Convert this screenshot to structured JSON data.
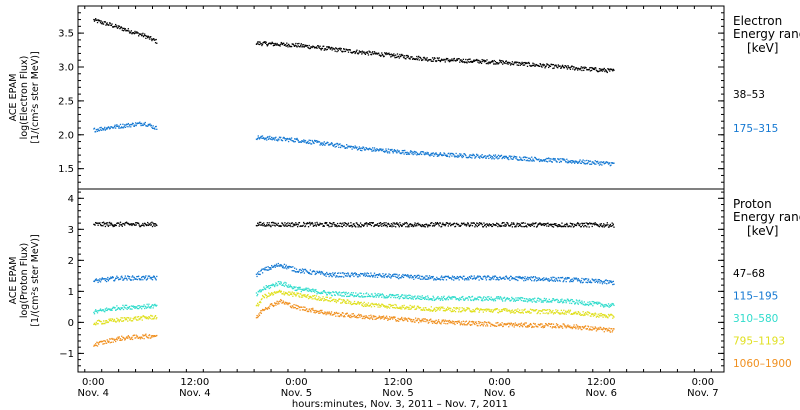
{
  "chart_data": [
    {
      "panel": "electron",
      "type": "scatter",
      "ylabel_lines": [
        "ACE EPAM",
        "log(Electron Flux)",
        "[1/(cm²s ster MeV)]"
      ],
      "ylim": [
        1.2,
        3.9
      ],
      "yticks": [
        1.5,
        2.0,
        2.5,
        3.0,
        3.5
      ],
      "ytick_labels": [
        "1.5",
        "2.0",
        "2.5",
        "3.0",
        "3.5"
      ],
      "legend_title": [
        "Electron",
        "Energy ranges",
        "[keV]"
      ],
      "series": [
        {
          "name": "38–53",
          "color": "#000000",
          "segments": [
            {
              "x": [
                0.0,
                2.0,
                4.0,
                6.0,
                7.5
              ],
              "y": [
                3.7,
                3.63,
                3.55,
                3.47,
                3.38
              ]
            },
            {
              "x": [
                19.2,
                24.0,
                32.0,
                40.0,
                48.0,
                56.0,
                61.5
              ],
              "y": [
                3.36,
                3.33,
                3.22,
                3.12,
                3.08,
                3.0,
                2.95
              ]
            }
          ]
        },
        {
          "name": "175–315",
          "color": "#1478d2",
          "segments": [
            {
              "x": [
                0.0,
                2.0,
                4.0,
                6.0,
                7.5
              ],
              "y": [
                2.08,
                2.12,
                2.15,
                2.18,
                2.1
              ]
            },
            {
              "x": [
                19.2,
                24.0,
                32.0,
                40.0,
                48.0,
                56.0,
                61.5
              ],
              "y": [
                1.97,
                1.93,
                1.8,
                1.72,
                1.68,
                1.62,
                1.58
              ]
            }
          ]
        }
      ]
    },
    {
      "panel": "proton",
      "type": "scatter",
      "ylabel_lines": [
        "ACE EPAM",
        "log(Proton Flux)",
        "[1/(cm²s ster MeV)]"
      ],
      "ylim": [
        -1.6,
        4.3
      ],
      "yticks": [
        -1,
        0,
        1,
        2,
        3,
        4
      ],
      "ytick_labels": [
        "−1",
        "0",
        "1",
        "2",
        "3",
        "4"
      ],
      "legend_title": [
        "Proton",
        "Energy ranges",
        "[keV]"
      ],
      "series": [
        {
          "name": "47–68",
          "color": "#000000",
          "segments": [
            {
              "x": [
                0.0,
                7.5
              ],
              "y": [
                3.18,
                3.18
              ]
            },
            {
              "x": [
                19.2,
                30.0,
                45.0,
                61.5
              ],
              "y": [
                3.18,
                3.17,
                3.17,
                3.16
              ]
            }
          ]
        },
        {
          "name": "115–195",
          "color": "#1478d2",
          "segments": [
            {
              "x": [
                0.0,
                3.0,
                7.5
              ],
              "y": [
                1.35,
                1.45,
                1.45
              ]
            },
            {
              "x": [
                19.2,
                20.0,
                22.0,
                24.0,
                28.0,
                32.0,
                40.0,
                48.0,
                56.0,
                61.5
              ],
              "y": [
                1.55,
                1.7,
                1.88,
                1.7,
                1.55,
                1.55,
                1.45,
                1.45,
                1.4,
                1.3
              ]
            }
          ]
        },
        {
          "name": "310–580",
          "color": "#30dccc",
          "segments": [
            {
              "x": [
                0.0,
                3.0,
                7.5
              ],
              "y": [
                0.35,
                0.5,
                0.55
              ]
            },
            {
              "x": [
                19.2,
                20.0,
                22.0,
                24.0,
                28.0,
                32.0,
                40.0,
                48.0,
                56.0,
                61.5
              ],
              "y": [
                0.9,
                1.1,
                1.3,
                1.1,
                0.95,
                0.9,
                0.8,
                0.78,
                0.7,
                0.55
              ]
            }
          ]
        },
        {
          "name": "795–1193",
          "color": "#e0e020",
          "segments": [
            {
              "x": [
                0.0,
                3.0,
                7.5
              ],
              "y": [
                0.0,
                0.1,
                0.2
              ]
            },
            {
              "x": [
                19.2,
                20.0,
                22.0,
                24.0,
                28.0,
                32.0,
                40.0,
                48.0,
                56.0,
                61.5
              ],
              "y": [
                0.5,
                0.85,
                1.0,
                0.9,
                0.75,
                0.6,
                0.45,
                0.4,
                0.35,
                0.2
              ]
            }
          ]
        },
        {
          "name": "1060–1900",
          "color": "#f09020",
          "segments": [
            {
              "x": [
                0.0,
                3.0,
                7.5
              ],
              "y": [
                -0.7,
                -0.5,
                -0.4
              ]
            },
            {
              "x": [
                19.2,
                20.0,
                22.0,
                24.0,
                28.0,
                32.0,
                40.0,
                48.0,
                56.0,
                61.5
              ],
              "y": [
                0.15,
                0.45,
                0.7,
                0.5,
                0.3,
                0.2,
                0.05,
                -0.05,
                -0.1,
                -0.25
              ]
            }
          ]
        }
      ]
    }
  ],
  "x_axis": {
    "range_hours": [
      -1.8,
      74.5
    ],
    "ticks_hours": [
      0,
      12,
      24,
      36,
      48,
      60,
      72
    ],
    "tick_labels_time": [
      "0:00",
      "12:00",
      "0:00",
      "12:00",
      "0:00",
      "12:00",
      "0:00"
    ],
    "tick_labels_day": [
      "Nov. 4",
      "Nov. 4",
      "Nov. 5",
      "Nov. 5",
      "Nov. 6",
      "Nov. 6",
      "Nov. 7"
    ],
    "title": "hours:minutes, Nov.  3, 2011 – Nov.  7, 2011"
  }
}
